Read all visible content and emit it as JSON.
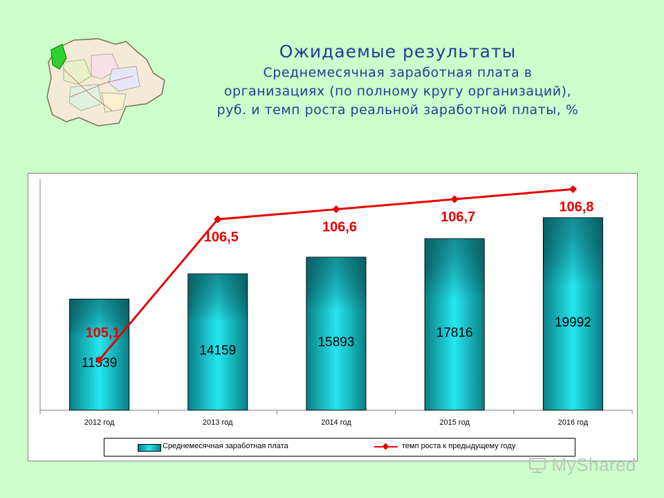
{
  "header": {
    "title": "Ожидаемые результаты",
    "subtitle_lines": [
      "Среднемесячная заработная плата в",
      "организациях (по полному кругу организаций),",
      "руб. и темп роста реальной заработной платы, %"
    ]
  },
  "watermark": {
    "text": "MyShared"
  },
  "colors": {
    "background": "#ccffcc",
    "title": "#1f3f8f",
    "bar_dark": "#0a7f86",
    "bar_light": "#25e7f0",
    "line": "#e60000"
  },
  "chart_data": {
    "type": "bar",
    "categories": [
      "2012 год",
      "2013 год",
      "2014 год",
      "2015 год",
      "2016 год"
    ],
    "series": [
      {
        "name": "Среднемесячная заработная плата",
        "type": "bar",
        "values": [
          11539,
          14159,
          15893,
          17816,
          19992
        ]
      },
      {
        "name": "темп роста к предыдущему году",
        "type": "line",
        "values": [
          105.1,
          106.5,
          106.6,
          106.7,
          106.8
        ],
        "labels": [
          "105,1",
          "106,5",
          "106,6",
          "106,7",
          "106,8"
        ]
      }
    ],
    "ylim": [
      0,
      24000
    ],
    "line_ylim": [
      104.6,
      106.9
    ],
    "grid": false,
    "legend_position": "bottom"
  }
}
